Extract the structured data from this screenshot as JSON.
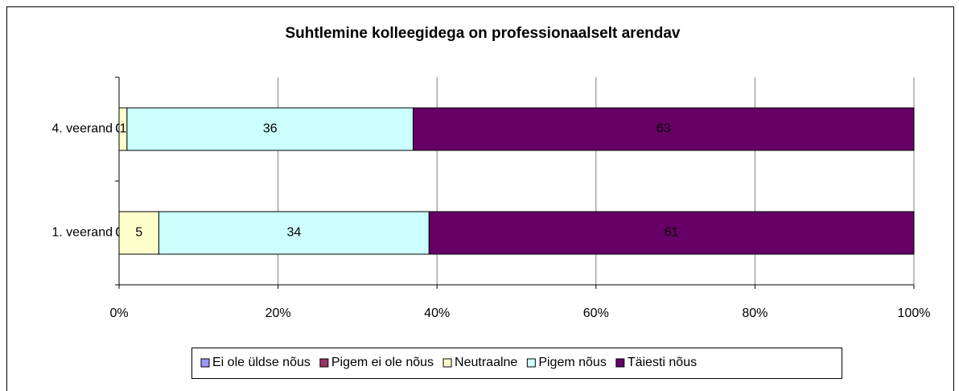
{
  "chart_data": {
    "type": "stacked_bar_horizontal",
    "title": "Suhtlemine kolleegidega on professionaalselt arendav",
    "categories": [
      "1. veerand",
      "4. veerand"
    ],
    "series": [
      {
        "name": "Ei ole üldse nõus",
        "color": "#9999ff",
        "values": [
          0,
          0
        ]
      },
      {
        "name": "Pigem ei ole nõus",
        "color": "#993366",
        "values": [
          0,
          0
        ]
      },
      {
        "name": "Neutraalne",
        "color": "#ffffcc",
        "values": [
          5,
          1
        ]
      },
      {
        "name": "Pigem nõus",
        "color": "#ccffff",
        "values": [
          34,
          36
        ]
      },
      {
        "name": "Täiesti nõus",
        "color": "#660066",
        "values": [
          61,
          63
        ]
      }
    ],
    "xlim": [
      0,
      100
    ],
    "xticks": [
      {
        "value": 0,
        "label": "0%"
      },
      {
        "value": 20,
        "label": "20%"
      },
      {
        "value": 40,
        "label": "40%"
      },
      {
        "value": 60,
        "label": "60%"
      },
      {
        "value": 80,
        "label": "80%"
      },
      {
        "value": 100,
        "label": "100%"
      }
    ],
    "grid": true,
    "legend": "bottom"
  }
}
